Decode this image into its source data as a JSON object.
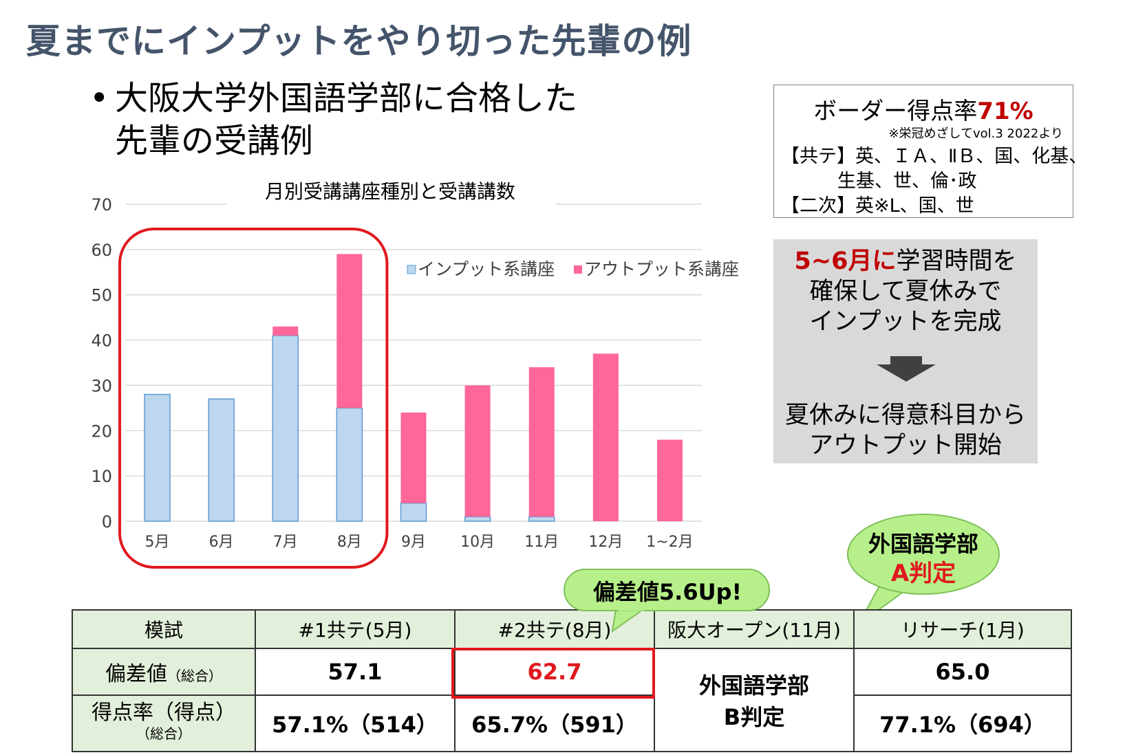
{
  "slide": {
    "title": "夏までにインプットをやり切った先輩の例",
    "bullet_mark": "•",
    "bullet_line1": "大阪大学外国語学部に合格した",
    "bullet_line2": "先輩の受講例"
  },
  "border_box": {
    "label": "ボーダー得点率",
    "rate": "71%",
    "source": "※栄冠めざしてvol.3 2022より",
    "line1": "【共テ】英、ＩＡ、ⅡＢ、国、化基、",
    "line2": "生基、世、倫･政",
    "line3": "【二次】英※L、国、世"
  },
  "gray_box": {
    "line1_red": "5~6月に",
    "line1_rest": "学習時間を",
    "line2": "確保して夏休みで",
    "line3": "インプットを完成",
    "line4": "夏休みに得意科目から",
    "line5": "アウトプット開始",
    "arrow_icon": "down-arrow-icon"
  },
  "bubbles": {
    "deviation_up": "偏差値5.6Up!",
    "grade_a_line1": "外国語学部",
    "grade_a_line2": "A判定"
  },
  "chart_data": {
    "type": "bar",
    "stacked": true,
    "title": "月別受講講座種別と受講講数",
    "categories": [
      "5月",
      "6月",
      "7月",
      "8月",
      "9月",
      "10月",
      "11月",
      "12月",
      "1~2月"
    ],
    "series": [
      {
        "name": "インプット系講座",
        "color": "#bdd7ee",
        "values": [
          28,
          27,
          41,
          25,
          4,
          1,
          1,
          0,
          0
        ]
      },
      {
        "name": "アウトプット系講座",
        "color": "#ff6699",
        "values": [
          0,
          0,
          2,
          34,
          20,
          29,
          33,
          37,
          18
        ]
      }
    ],
    "ylim": [
      0,
      70
    ],
    "yticks": [
      0,
      10,
      20,
      30,
      40,
      50,
      60,
      70
    ],
    "grid": true,
    "legend_position": "top-right",
    "highlight_categories": [
      "5月",
      "6月",
      "7月",
      "8月"
    ],
    "highlight_color": "#e0191e"
  },
  "results_table": {
    "headers": [
      "模試",
      "#1共テ(5月)",
      "#2共テ(8月)",
      "阪大オープン(11月)",
      "リサーチ(1月)"
    ],
    "row1_label": "偏差値",
    "row1_label_small": "（総合）",
    "row1_values": [
      "57.1",
      "62.7",
      "65.0"
    ],
    "row2_label": "得点率（得点）",
    "row2_label_small": "（総合）",
    "row2_values": [
      "57.1%（514）",
      "65.7%（591）",
      "77.1%（694）"
    ],
    "open_judgement": "外国語学部\nB判定",
    "open_judgement_line1": "外国語学部",
    "open_judgement_line2": "B判定"
  }
}
